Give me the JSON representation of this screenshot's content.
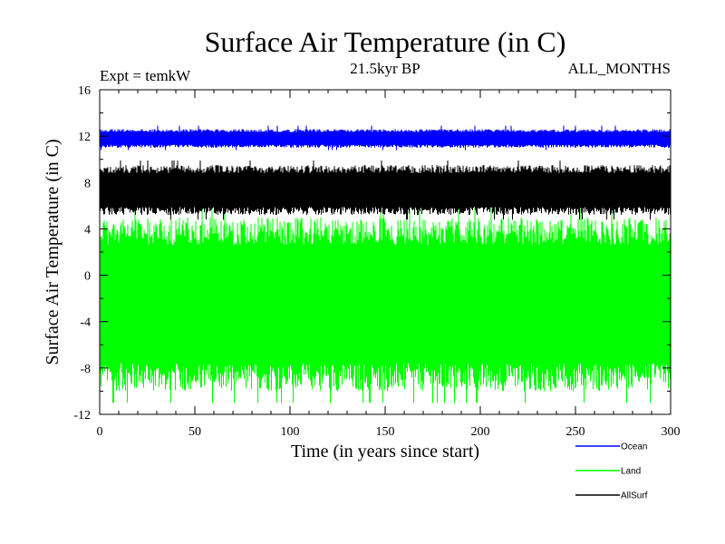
{
  "chart_data": {
    "type": "line",
    "title": "Surface Air Temperature (in C)",
    "subtitle": "21.5kyr BP",
    "experiment_label": "Expt = temkW",
    "period_label": "ALL_MONTHS",
    "xlabel": "Time (in years since start)",
    "ylabel": "Surface Air Temperature (in C)",
    "xlim": [
      0,
      300
    ],
    "ylim": [
      -12,
      16
    ],
    "x_ticks": [
      0,
      50,
      100,
      150,
      200,
      250,
      300
    ],
    "y_ticks": [
      -12,
      -8,
      -4,
      0,
      4,
      8,
      12,
      16
    ],
    "grid": false,
    "legend_position": "bottom-right",
    "series": [
      {
        "name": "Land",
        "color": "#00ff00",
        "min": -10.0,
        "max": 5.0,
        "min_extreme": -11.0,
        "max_extreme": 5.8,
        "description": "monthly oscillation"
      },
      {
        "name": "AllSurf",
        "color": "#000000",
        "min": 5.2,
        "max": 9.5,
        "min_extreme": 4.8,
        "max_extreme": 9.9,
        "description": "monthly oscillation"
      },
      {
        "name": "Ocean",
        "color": "#0000ff",
        "min": 11.0,
        "max": 12.6,
        "min_extreme": 10.8,
        "max_extreme": 12.9,
        "description": "monthly oscillation"
      }
    ],
    "legend": [
      "Ocean",
      "Land",
      "AllSurf"
    ]
  }
}
